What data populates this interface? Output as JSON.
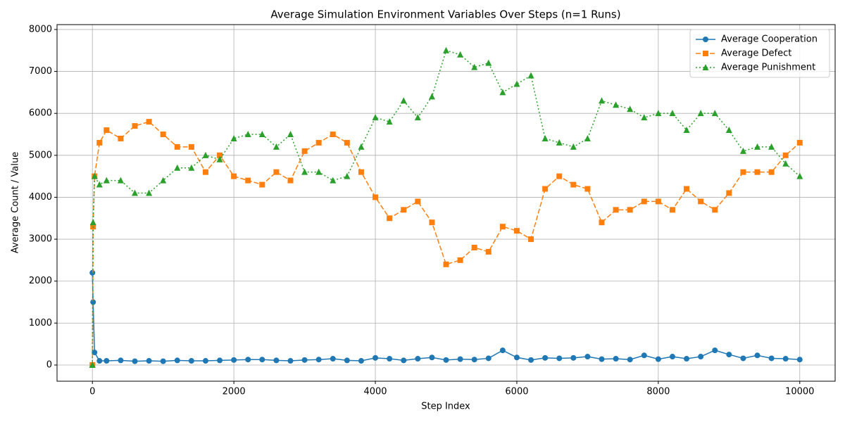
{
  "chart_data": {
    "type": "line",
    "title": "Average Simulation Environment Variables Over Steps (n=1 Runs)",
    "x_label": "Step Index",
    "y_label": "Average Count / Value",
    "x": [
      0,
      10,
      30,
      100,
      200,
      400,
      600,
      800,
      1000,
      1200,
      1400,
      1600,
      1800,
      2000,
      2200,
      2400,
      2600,
      2800,
      3000,
      3200,
      3400,
      3600,
      3800,
      4000,
      4200,
      4400,
      4600,
      4800,
      5000,
      5200,
      5400,
      5600,
      5800,
      6000,
      6200,
      6400,
      6600,
      6800,
      7000,
      7200,
      7400,
      7600,
      7800,
      8000,
      8200,
      8400,
      8600,
      8800,
      9000,
      9200,
      9400,
      9600,
      9800,
      10000
    ],
    "series": [
      {
        "name": "Average Cooperation",
        "color": "#1f77b4",
        "dash": "solid",
        "marker": "circle",
        "values": [
          2200,
          1500,
          300,
          100,
          100,
          110,
          90,
          100,
          90,
          110,
          100,
          100,
          110,
          120,
          130,
          130,
          110,
          100,
          120,
          130,
          150,
          110,
          100,
          170,
          150,
          110,
          150,
          180,
          120,
          140,
          130,
          160,
          350,
          180,
          120,
          170,
          160,
          170,
          200,
          140,
          150,
          130,
          230,
          140,
          200,
          150,
          200,
          350,
          250,
          160,
          230,
          160,
          150,
          130
        ]
      },
      {
        "name": "Average Defect",
        "color": "#ff7f0e",
        "dash": "dashed",
        "marker": "square",
        "values": [
          0,
          3300,
          4500,
          5300,
          5600,
          5400,
          5700,
          5800,
          5500,
          5200,
          5200,
          4600,
          5000,
          4500,
          4400,
          4300,
          4600,
          4400,
          5100,
          5300,
          5500,
          5300,
          4600,
          4000,
          3500,
          3700,
          3900,
          3400,
          2400,
          2500,
          2800,
          2700,
          3300,
          3200,
          3000,
          4200,
          4500,
          4300,
          4200,
          3400,
          3700,
          3700,
          3900,
          3900,
          3700,
          4200,
          3900,
          3700,
          4100,
          4600,
          4600,
          4600,
          5000,
          5300
        ]
      },
      {
        "name": "Average Punishment",
        "color": "#2ca02c",
        "dash": "dotted",
        "marker": "triangle",
        "values": [
          0,
          3400,
          4500,
          4300,
          4400,
          4400,
          4100,
          4100,
          4400,
          4700,
          4700,
          5000,
          4900,
          5400,
          5500,
          5500,
          5200,
          5500,
          4600,
          4600,
          4400,
          4500,
          5200,
          5900,
          5800,
          6300,
          5900,
          6400,
          7500,
          7400,
          7100,
          7200,
          6500,
          6700,
          6900,
          5400,
          5300,
          5200,
          5400,
          6300,
          6200,
          6100,
          5900,
          6000,
          6000,
          5600,
          6000,
          6000,
          5600,
          5100,
          5200,
          5200,
          4800,
          4500
        ]
      }
    ],
    "xlim": [
      -500,
      10500
    ],
    "ylim": [
      -386,
      8116
    ],
    "xticks": [
      0,
      2000,
      4000,
      6000,
      8000,
      10000
    ],
    "yticks": [
      0,
      1000,
      2000,
      3000,
      4000,
      5000,
      6000,
      7000,
      8000
    ],
    "grid": true,
    "legend": "upper-right"
  }
}
